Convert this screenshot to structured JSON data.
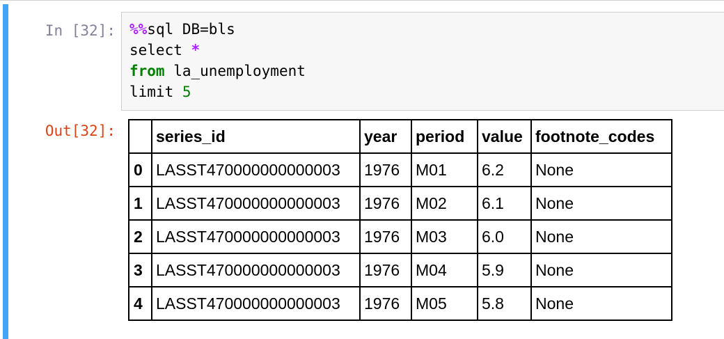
{
  "cell": {
    "in_prompt": "In [32]:",
    "out_prompt": "Out[32]:",
    "code_lines": [
      {
        "parts": [
          {
            "text": "%%",
            "cls": "magic"
          },
          {
            "text": "sql DB=bls",
            "cls": ""
          }
        ]
      },
      {
        "parts": [
          {
            "text": "select ",
            "cls": ""
          },
          {
            "text": "*",
            "cls": "op"
          }
        ]
      },
      {
        "parts": [
          {
            "text": "from",
            "cls": "kw"
          },
          {
            "text": " la_unemployment",
            "cls": ""
          }
        ]
      },
      {
        "parts": [
          {
            "text": "limit ",
            "cls": ""
          },
          {
            "text": "5",
            "cls": "num"
          }
        ]
      }
    ]
  },
  "table": {
    "headers": [
      "",
      "series_id",
      "year",
      "period",
      "value",
      "footnote_codes"
    ],
    "rows": [
      {
        "index": "0",
        "series_id": "LASST470000000000003",
        "year": "1976",
        "period": "M01",
        "value": "6.2",
        "footnote_codes": "None"
      },
      {
        "index": "1",
        "series_id": "LASST470000000000003",
        "year": "1976",
        "period": "M02",
        "value": "6.1",
        "footnote_codes": "None"
      },
      {
        "index": "2",
        "series_id": "LASST470000000000003",
        "year": "1976",
        "period": "M03",
        "value": "6.0",
        "footnote_codes": "None"
      },
      {
        "index": "3",
        "series_id": "LASST470000000000003",
        "year": "1976",
        "period": "M04",
        "value": "5.9",
        "footnote_codes": "None"
      },
      {
        "index": "4",
        "series_id": "LASST470000000000003",
        "year": "1976",
        "period": "M05",
        "value": "5.8",
        "footnote_codes": "None"
      }
    ]
  },
  "colors": {
    "cell_selected_bar": "#42a5f5",
    "out_prompt": "#d84315",
    "input_background": "#f7f7f7",
    "keyword": "#008000",
    "magic": "#aa22ff"
  }
}
